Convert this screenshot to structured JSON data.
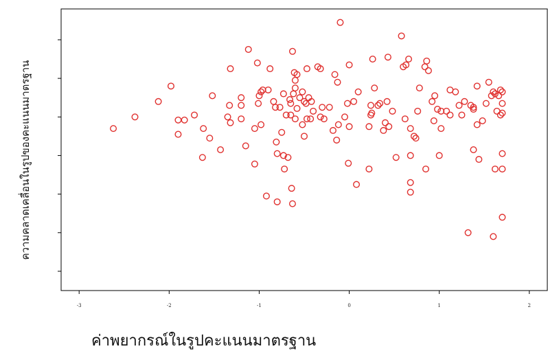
{
  "chart_data": {
    "type": "scatter",
    "title": "",
    "xlabel": "ค่าพยากรณ์ในรูปคะแนนมาตรฐาน",
    "ylabel": "ความคลาดเคลื่อนในรูปของคะแนนมาตรฐาน",
    "x_ticks": [
      "-3",
      "-2",
      "-1",
      "0",
      "1",
      "2"
    ],
    "xlim": [
      -3.2,
      2.2
    ],
    "ylim": [
      -4.0,
      3.3
    ],
    "y_tick_values": [
      -3.5,
      -2.5,
      -1.5,
      -0.5,
      0.5,
      1.5,
      2.5
    ],
    "y_tick_labels_shown": false,
    "grid": false,
    "legend": "none",
    "marker": "open-circle",
    "marker_color": "#e0302e",
    "points": [
      [
        -2.62,
        0.2
      ],
      [
        -2.38,
        0.5
      ],
      [
        -2.12,
        0.9
      ],
      [
        -1.98,
        1.3
      ],
      [
        -1.9,
        0.42
      ],
      [
        -1.83,
        0.42
      ],
      [
        -1.9,
        0.05
      ],
      [
        -1.72,
        0.55
      ],
      [
        -1.62,
        0.2
      ],
      [
        -1.63,
        -0.55
      ],
      [
        -1.55,
        -0.05
      ],
      [
        -1.52,
        1.05
      ],
      [
        -1.43,
        -0.35
      ],
      [
        -1.35,
        0.5
      ],
      [
        -1.33,
        0.8
      ],
      [
        -1.32,
        0.35
      ],
      [
        -1.32,
        1.75
      ],
      [
        -1.2,
        1.0
      ],
      [
        -1.2,
        0.8
      ],
      [
        -1.2,
        0.45
      ],
      [
        -1.15,
        -0.25
      ],
      [
        -1.12,
        2.25
      ],
      [
        -1.05,
        0.2
      ],
      [
        -1.05,
        -0.72
      ],
      [
        -1.02,
        1.9
      ],
      [
        -1.01,
        0.85
      ],
      [
        -1.0,
        1.05
      ],
      [
        -0.98,
        1.15
      ],
      [
        -0.98,
        0.3
      ],
      [
        -0.96,
        1.2
      ],
      [
        -0.92,
        -1.55
      ],
      [
        -0.9,
        1.2
      ],
      [
        -0.88,
        1.75
      ],
      [
        -0.84,
        0.9
      ],
      [
        -0.82,
        0.75
      ],
      [
        -0.81,
        -0.15
      ],
      [
        -0.8,
        -0.45
      ],
      [
        -0.8,
        -1.7
      ],
      [
        -0.77,
        0.75
      ],
      [
        -0.75,
        0.1
      ],
      [
        -0.73,
        1.1
      ],
      [
        -0.73,
        -0.5
      ],
      [
        -0.72,
        -0.85
      ],
      [
        -0.7,
        0.55
      ],
      [
        -0.68,
        -0.55
      ],
      [
        -0.66,
        0.95
      ],
      [
        -0.65,
        0.85
      ],
      [
        -0.65,
        0.55
      ],
      [
        -0.64,
        -1.35
      ],
      [
        -0.63,
        -1.75
      ],
      [
        -0.63,
        2.2
      ],
      [
        -0.62,
        1.1
      ],
      [
        -0.61,
        1.65
      ],
      [
        -0.6,
        1.45
      ],
      [
        -0.6,
        0.45
      ],
      [
        -0.6,
        1.25
      ],
      [
        -0.58,
        0.72
      ],
      [
        -0.58,
        1.6
      ],
      [
        -0.55,
        1.0
      ],
      [
        -0.52,
        1.15
      ],
      [
        -0.52,
        0.3
      ],
      [
        -0.5,
        0.9
      ],
      [
        -0.5,
        0.0
      ],
      [
        -0.48,
        0.85
      ],
      [
        -0.47,
        0.45
      ],
      [
        -0.47,
        1.75
      ],
      [
        -0.45,
        1.0
      ],
      [
        -0.43,
        0.45
      ],
      [
        -0.42,
        0.9
      ],
      [
        -0.4,
        0.65
      ],
      [
        -0.35,
        1.8
      ],
      [
        -0.32,
        0.5
      ],
      [
        -0.32,
        1.75
      ],
      [
        -0.3,
        0.75
      ],
      [
        -0.28,
        0.45
      ],
      [
        -0.22,
        0.75
      ],
      [
        -0.18,
        0.15
      ],
      [
        -0.16,
        1.6
      ],
      [
        -0.14,
        -0.1
      ],
      [
        -0.13,
        1.4
      ],
      [
        -0.12,
        0.3
      ],
      [
        -0.1,
        2.95
      ],
      [
        -0.05,
        0.5
      ],
      [
        -0.02,
        0.85
      ],
      [
        -0.01,
        -0.7
      ],
      [
        0.0,
        0.25
      ],
      [
        0.0,
        1.85
      ],
      [
        0.05,
        0.9
      ],
      [
        0.08,
        -1.25
      ],
      [
        0.1,
        1.15
      ],
      [
        0.22,
        -0.85
      ],
      [
        0.22,
        0.25
      ],
      [
        0.24,
        0.8
      ],
      [
        0.24,
        0.55
      ],
      [
        0.25,
        0.6
      ],
      [
        0.26,
        2.0
      ],
      [
        0.28,
        1.25
      ],
      [
        0.32,
        0.8
      ],
      [
        0.34,
        0.85
      ],
      [
        0.38,
        0.15
      ],
      [
        0.4,
        0.35
      ],
      [
        0.42,
        0.9
      ],
      [
        0.43,
        2.05
      ],
      [
        0.44,
        0.25
      ],
      [
        0.48,
        0.65
      ],
      [
        0.52,
        -0.55
      ],
      [
        0.58,
        2.6
      ],
      [
        0.6,
        1.8
      ],
      [
        0.62,
        0.45
      ],
      [
        0.63,
        1.85
      ],
      [
        0.66,
        2.0
      ],
      [
        0.68,
        -1.45
      ],
      [
        0.68,
        -1.2
      ],
      [
        0.68,
        0.2
      ],
      [
        0.68,
        -0.5
      ],
      [
        0.72,
        0.0
      ],
      [
        0.74,
        -0.05
      ],
      [
        0.76,
        0.65
      ],
      [
        0.78,
        1.25
      ],
      [
        0.84,
        1.8
      ],
      [
        0.85,
        -0.85
      ],
      [
        0.86,
        1.95
      ],
      [
        0.88,
        1.7
      ],
      [
        0.92,
        0.9
      ],
      [
        0.94,
        0.4
      ],
      [
        0.95,
        1.05
      ],
      [
        0.98,
        0.7
      ],
      [
        1.0,
        -0.5
      ],
      [
        1.02,
        0.2
      ],
      [
        1.02,
        0.65
      ],
      [
        1.08,
        0.65
      ],
      [
        1.12,
        0.55
      ],
      [
        1.12,
        1.2
      ],
      [
        1.18,
        1.15
      ],
      [
        1.22,
        0.8
      ],
      [
        1.25,
        0.55
      ],
      [
        1.28,
        0.9
      ],
      [
        1.32,
        -2.5
      ],
      [
        1.35,
        0.8
      ],
      [
        1.38,
        -0.35
      ],
      [
        1.38,
        0.75
      ],
      [
        1.38,
        0.7
      ],
      [
        1.42,
        1.3
      ],
      [
        1.42,
        0.3
      ],
      [
        1.44,
        -0.6
      ],
      [
        1.48,
        0.4
      ],
      [
        1.52,
        0.85
      ],
      [
        1.55,
        1.4
      ],
      [
        1.58,
        1.05
      ],
      [
        1.6,
        1.15
      ],
      [
        1.6,
        -2.6
      ],
      [
        1.62,
        -0.85
      ],
      [
        1.62,
        1.1
      ],
      [
        1.64,
        0.65
      ],
      [
        1.66,
        1.05
      ],
      [
        1.68,
        0.55
      ],
      [
        1.68,
        1.2
      ],
      [
        1.7,
        -0.85
      ],
      [
        1.7,
        -0.45
      ],
      [
        1.7,
        0.6
      ],
      [
        1.7,
        0.85
      ],
      [
        1.7,
        1.15
      ],
      [
        1.7,
        -2.1
      ]
    ]
  }
}
